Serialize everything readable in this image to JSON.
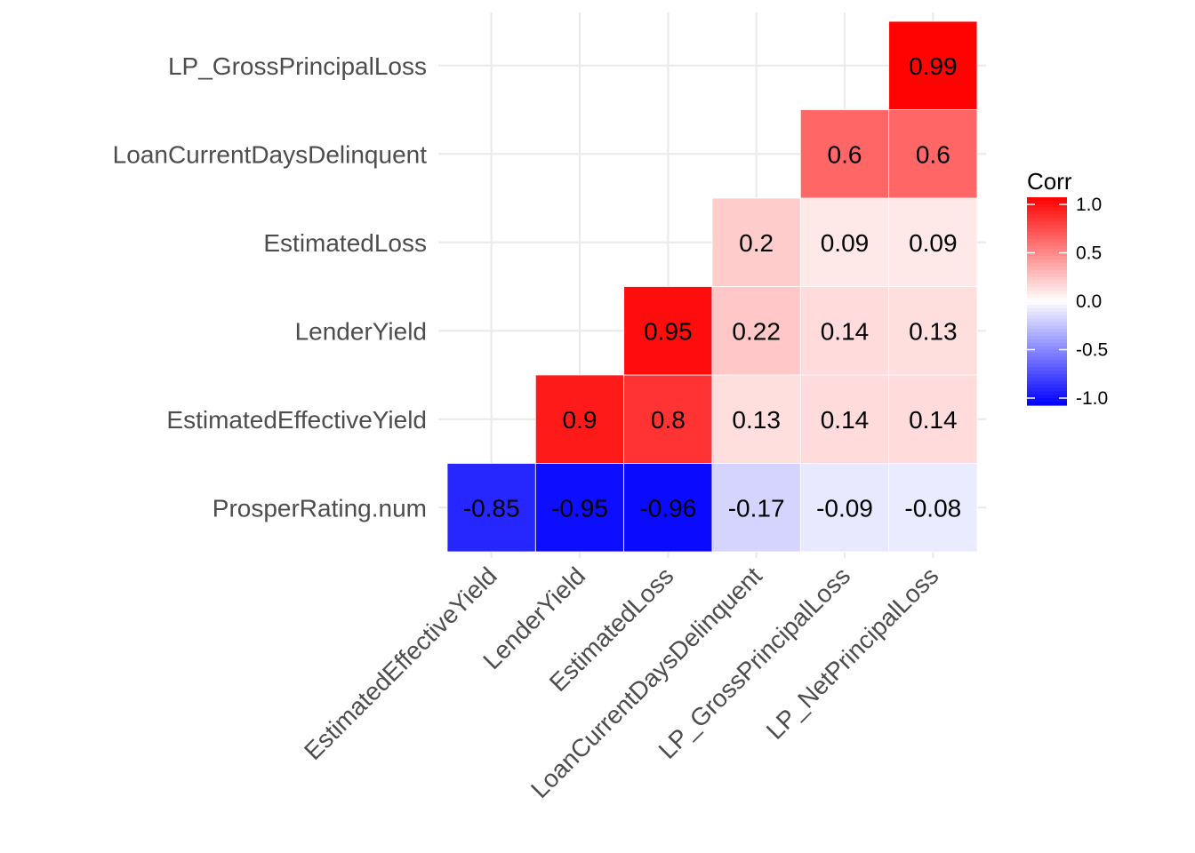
{
  "chart_data": {
    "type": "heatmap",
    "title": "",
    "xlabel": "",
    "ylabel": "",
    "x_categories": [
      "EstimatedEffectiveYield",
      "LenderYield",
      "EstimatedLoss",
      "LoanCurrentDaysDelinquent",
      "LP_GrossPrincipalLoss",
      "LP_NetPrincipalLoss"
    ],
    "y_categories": [
      "ProsperRating.num",
      "EstimatedEffectiveYield",
      "LenderYield",
      "EstimatedLoss",
      "LoanCurrentDaysDelinquent",
      "LP_GrossPrincipalLoss"
    ],
    "cells": [
      {
        "x": "EstimatedEffectiveYield",
        "y": "ProsperRating.num",
        "value": -0.85,
        "label": "-0.85"
      },
      {
        "x": "LenderYield",
        "y": "ProsperRating.num",
        "value": -0.95,
        "label": "-0.95"
      },
      {
        "x": "EstimatedLoss",
        "y": "ProsperRating.num",
        "value": -0.96,
        "label": "-0.96"
      },
      {
        "x": "LoanCurrentDaysDelinquent",
        "y": "ProsperRating.num",
        "value": -0.17,
        "label": "-0.17"
      },
      {
        "x": "LP_GrossPrincipalLoss",
        "y": "ProsperRating.num",
        "value": -0.09,
        "label": "-0.09"
      },
      {
        "x": "LP_NetPrincipalLoss",
        "y": "ProsperRating.num",
        "value": -0.08,
        "label": "-0.08"
      },
      {
        "x": "LenderYield",
        "y": "EstimatedEffectiveYield",
        "value": 0.9,
        "label": "0.9"
      },
      {
        "x": "EstimatedLoss",
        "y": "EstimatedEffectiveYield",
        "value": 0.8,
        "label": "0.8"
      },
      {
        "x": "LoanCurrentDaysDelinquent",
        "y": "EstimatedEffectiveYield",
        "value": 0.13,
        "label": "0.13"
      },
      {
        "x": "LP_GrossPrincipalLoss",
        "y": "EstimatedEffectiveYield",
        "value": 0.14,
        "label": "0.14"
      },
      {
        "x": "LP_NetPrincipalLoss",
        "y": "EstimatedEffectiveYield",
        "value": 0.14,
        "label": "0.14"
      },
      {
        "x": "EstimatedLoss",
        "y": "LenderYield",
        "value": 0.95,
        "label": "0.95"
      },
      {
        "x": "LoanCurrentDaysDelinquent",
        "y": "LenderYield",
        "value": 0.22,
        "label": "0.22"
      },
      {
        "x": "LP_GrossPrincipalLoss",
        "y": "LenderYield",
        "value": 0.14,
        "label": "0.14"
      },
      {
        "x": "LP_NetPrincipalLoss",
        "y": "LenderYield",
        "value": 0.13,
        "label": "0.13"
      },
      {
        "x": "LoanCurrentDaysDelinquent",
        "y": "EstimatedLoss",
        "value": 0.2,
        "label": "0.2"
      },
      {
        "x": "LP_GrossPrincipalLoss",
        "y": "EstimatedLoss",
        "value": 0.09,
        "label": "0.09"
      },
      {
        "x": "LP_NetPrincipalLoss",
        "y": "EstimatedLoss",
        "value": 0.09,
        "label": "0.09"
      },
      {
        "x": "LP_GrossPrincipalLoss",
        "y": "LoanCurrentDaysDelinquent",
        "value": 0.6,
        "label": "0.6"
      },
      {
        "x": "LP_NetPrincipalLoss",
        "y": "LoanCurrentDaysDelinquent",
        "value": 0.6,
        "label": "0.6"
      },
      {
        "x": "LP_NetPrincipalLoss",
        "y": "LP_GrossPrincipalLoss",
        "value": 0.99,
        "label": "0.99"
      }
    ],
    "color_scale": {
      "low": "#0000FF",
      "mid": "#FFFFFF",
      "high": "#FF0000",
      "limits": [
        -1,
        1
      ]
    },
    "legend": {
      "title": "Corr",
      "position": "right",
      "ticks": [
        {
          "value": 1.0,
          "label": "1.0"
        },
        {
          "value": 0.5,
          "label": "0.5"
        },
        {
          "value": 0.0,
          "label": "0.0"
        },
        {
          "value": -0.5,
          "label": "-0.5"
        },
        {
          "value": -1.0,
          "label": "-1.0"
        }
      ]
    },
    "grid": true
  }
}
